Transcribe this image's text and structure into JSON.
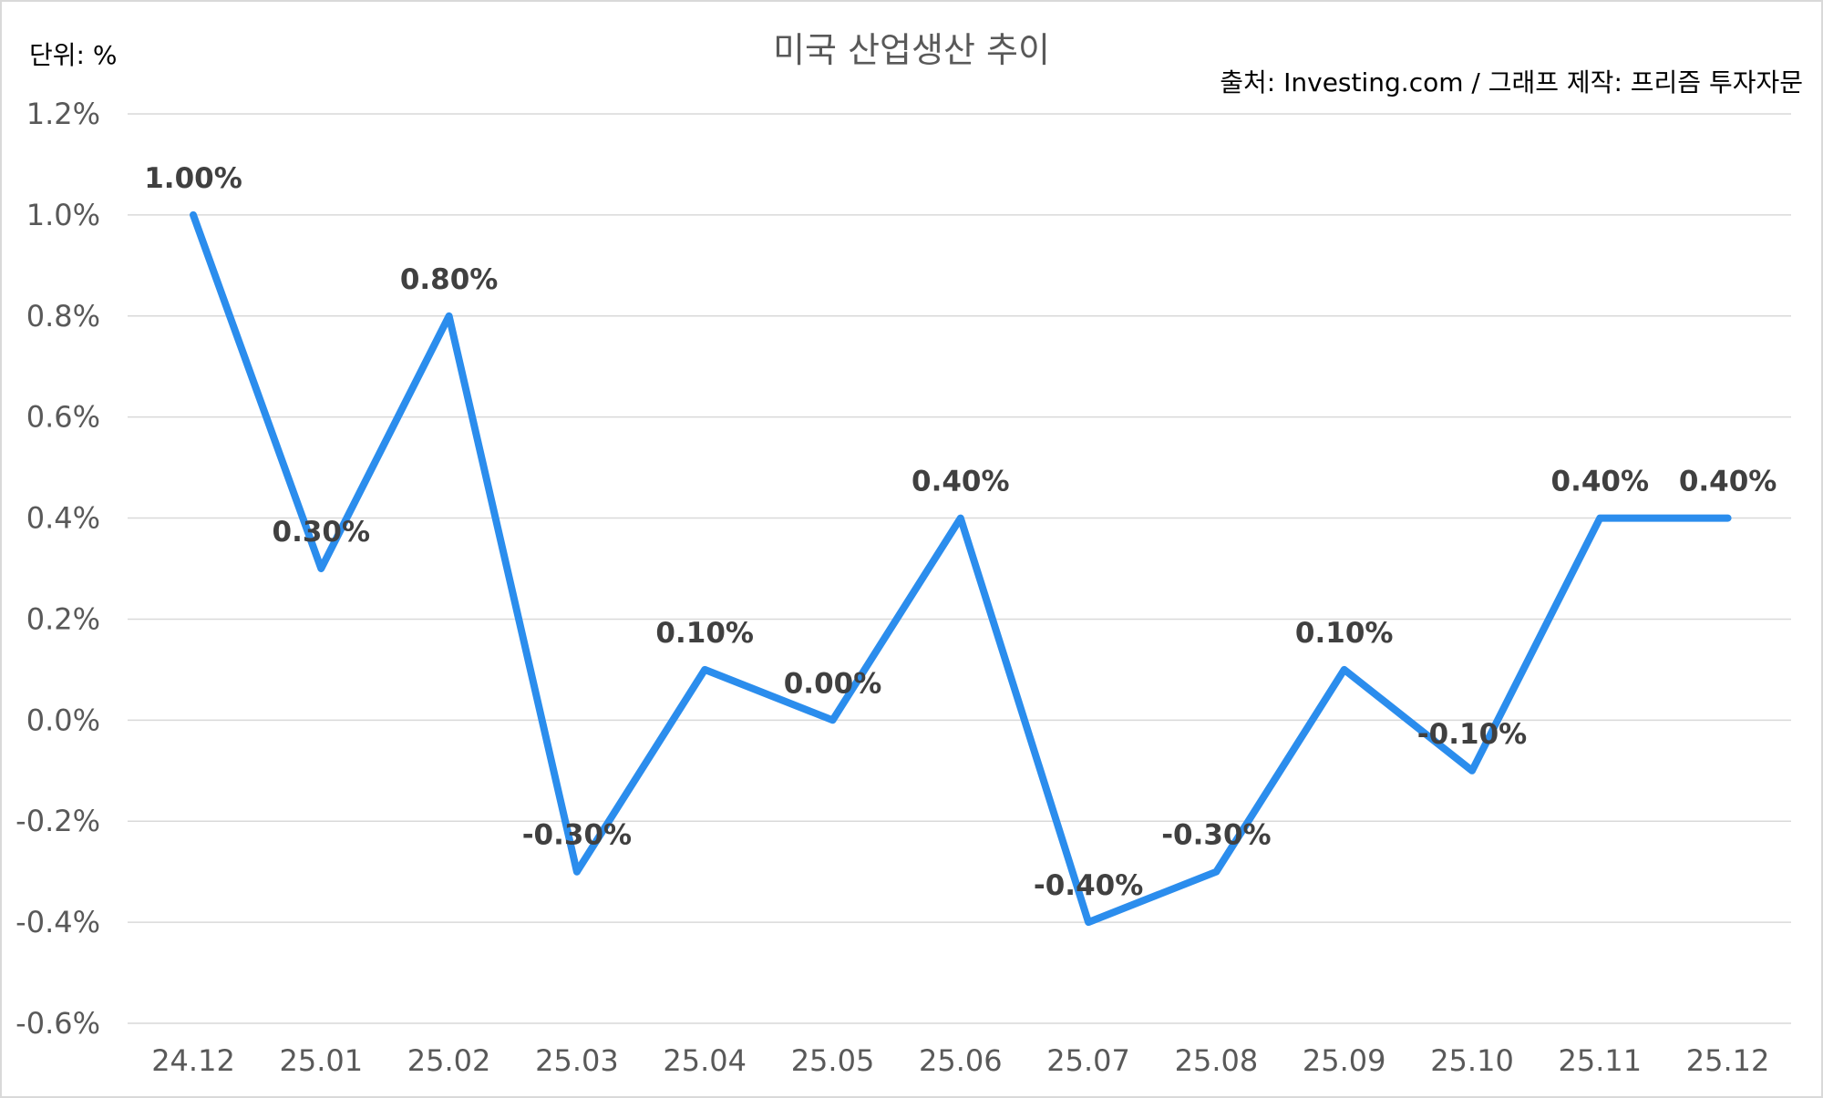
{
  "chart_data": {
    "type": "line",
    "title": "미국 산업생산 추이",
    "unit_label": "단위: %",
    "source_note": "출처: Investing.com / 그래프 제작: 프리즘 투자자문",
    "categories": [
      "24.12",
      "25.01",
      "25.02",
      "25.03",
      "25.04",
      "25.05",
      "25.06",
      "25.07",
      "25.08",
      "25.09",
      "25.10",
      "25.11",
      "25.12"
    ],
    "series": [
      {
        "values": [
          1.0,
          0.3,
          0.8,
          -0.3,
          0.1,
          0.0,
          0.4,
          -0.4,
          -0.3,
          0.1,
          -0.1,
          0.4,
          0.4
        ],
        "data_labels": [
          "1.00%",
          "0.30%",
          "0.80%",
          "-0.30%",
          "0.10%",
          "0.00%",
          "0.40%",
          "-0.40%",
          "-0.30%",
          "0.10%",
          "-0.10%",
          "0.40%",
          "0.40%"
        ],
        "color": "#2b8ded"
      }
    ],
    "y_ticks": [
      1.2,
      1.0,
      0.8,
      0.6,
      0.4,
      0.2,
      0.0,
      -0.2,
      -0.4,
      -0.6
    ],
    "y_tick_labels": [
      "1.2%",
      "1.0%",
      "0.8%",
      "0.6%",
      "0.4%",
      "0.2%",
      "0.0%",
      "-0.2%",
      "-0.4%",
      "-0.6%"
    ],
    "ylim": [
      -0.6,
      1.2
    ],
    "grid": true,
    "legend": "none"
  }
}
